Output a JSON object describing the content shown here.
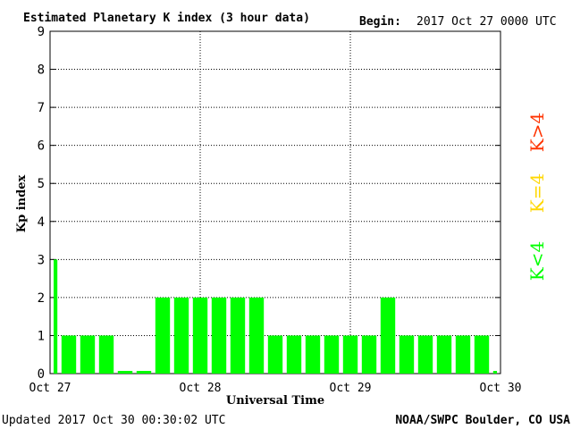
{
  "header": {
    "title": "Estimated Planetary K index (3 hour data)",
    "begin_label": "Begin:",
    "begin_value": "2017 Oct 27 0000 UTC"
  },
  "footer": {
    "updated": "Updated 2017 Oct 30 00:30:02 UTC",
    "source": "NOAA/SWPC Boulder, CO USA"
  },
  "legend": {
    "items": [
      {
        "label": "K<4",
        "color": "#00ff00"
      },
      {
        "label": "K=4",
        "color": "#ffd700"
      },
      {
        "label": "K>4",
        "color": "#ff3300"
      }
    ]
  },
  "chart_data": {
    "type": "bar",
    "title": "Estimated Planetary K index (3 hour data)",
    "xlabel": "Universal Time",
    "ylabel": "Kp index",
    "ylim": [
      0,
      9
    ],
    "yticks": [
      "0",
      "1",
      "2",
      "3",
      "4",
      "5",
      "6",
      "7",
      "8",
      "9"
    ],
    "xticks": [
      "Oct 27",
      "Oct 28",
      "Oct 29",
      "Oct 30"
    ],
    "grid": true,
    "bar_color": "#00ff00",
    "values": [
      3,
      1,
      1,
      1,
      0.07,
      0.07,
      2,
      2,
      2,
      2,
      2,
      2,
      1,
      1,
      1,
      1,
      1,
      1,
      2,
      1,
      1,
      1,
      1,
      1,
      0.07
    ]
  }
}
